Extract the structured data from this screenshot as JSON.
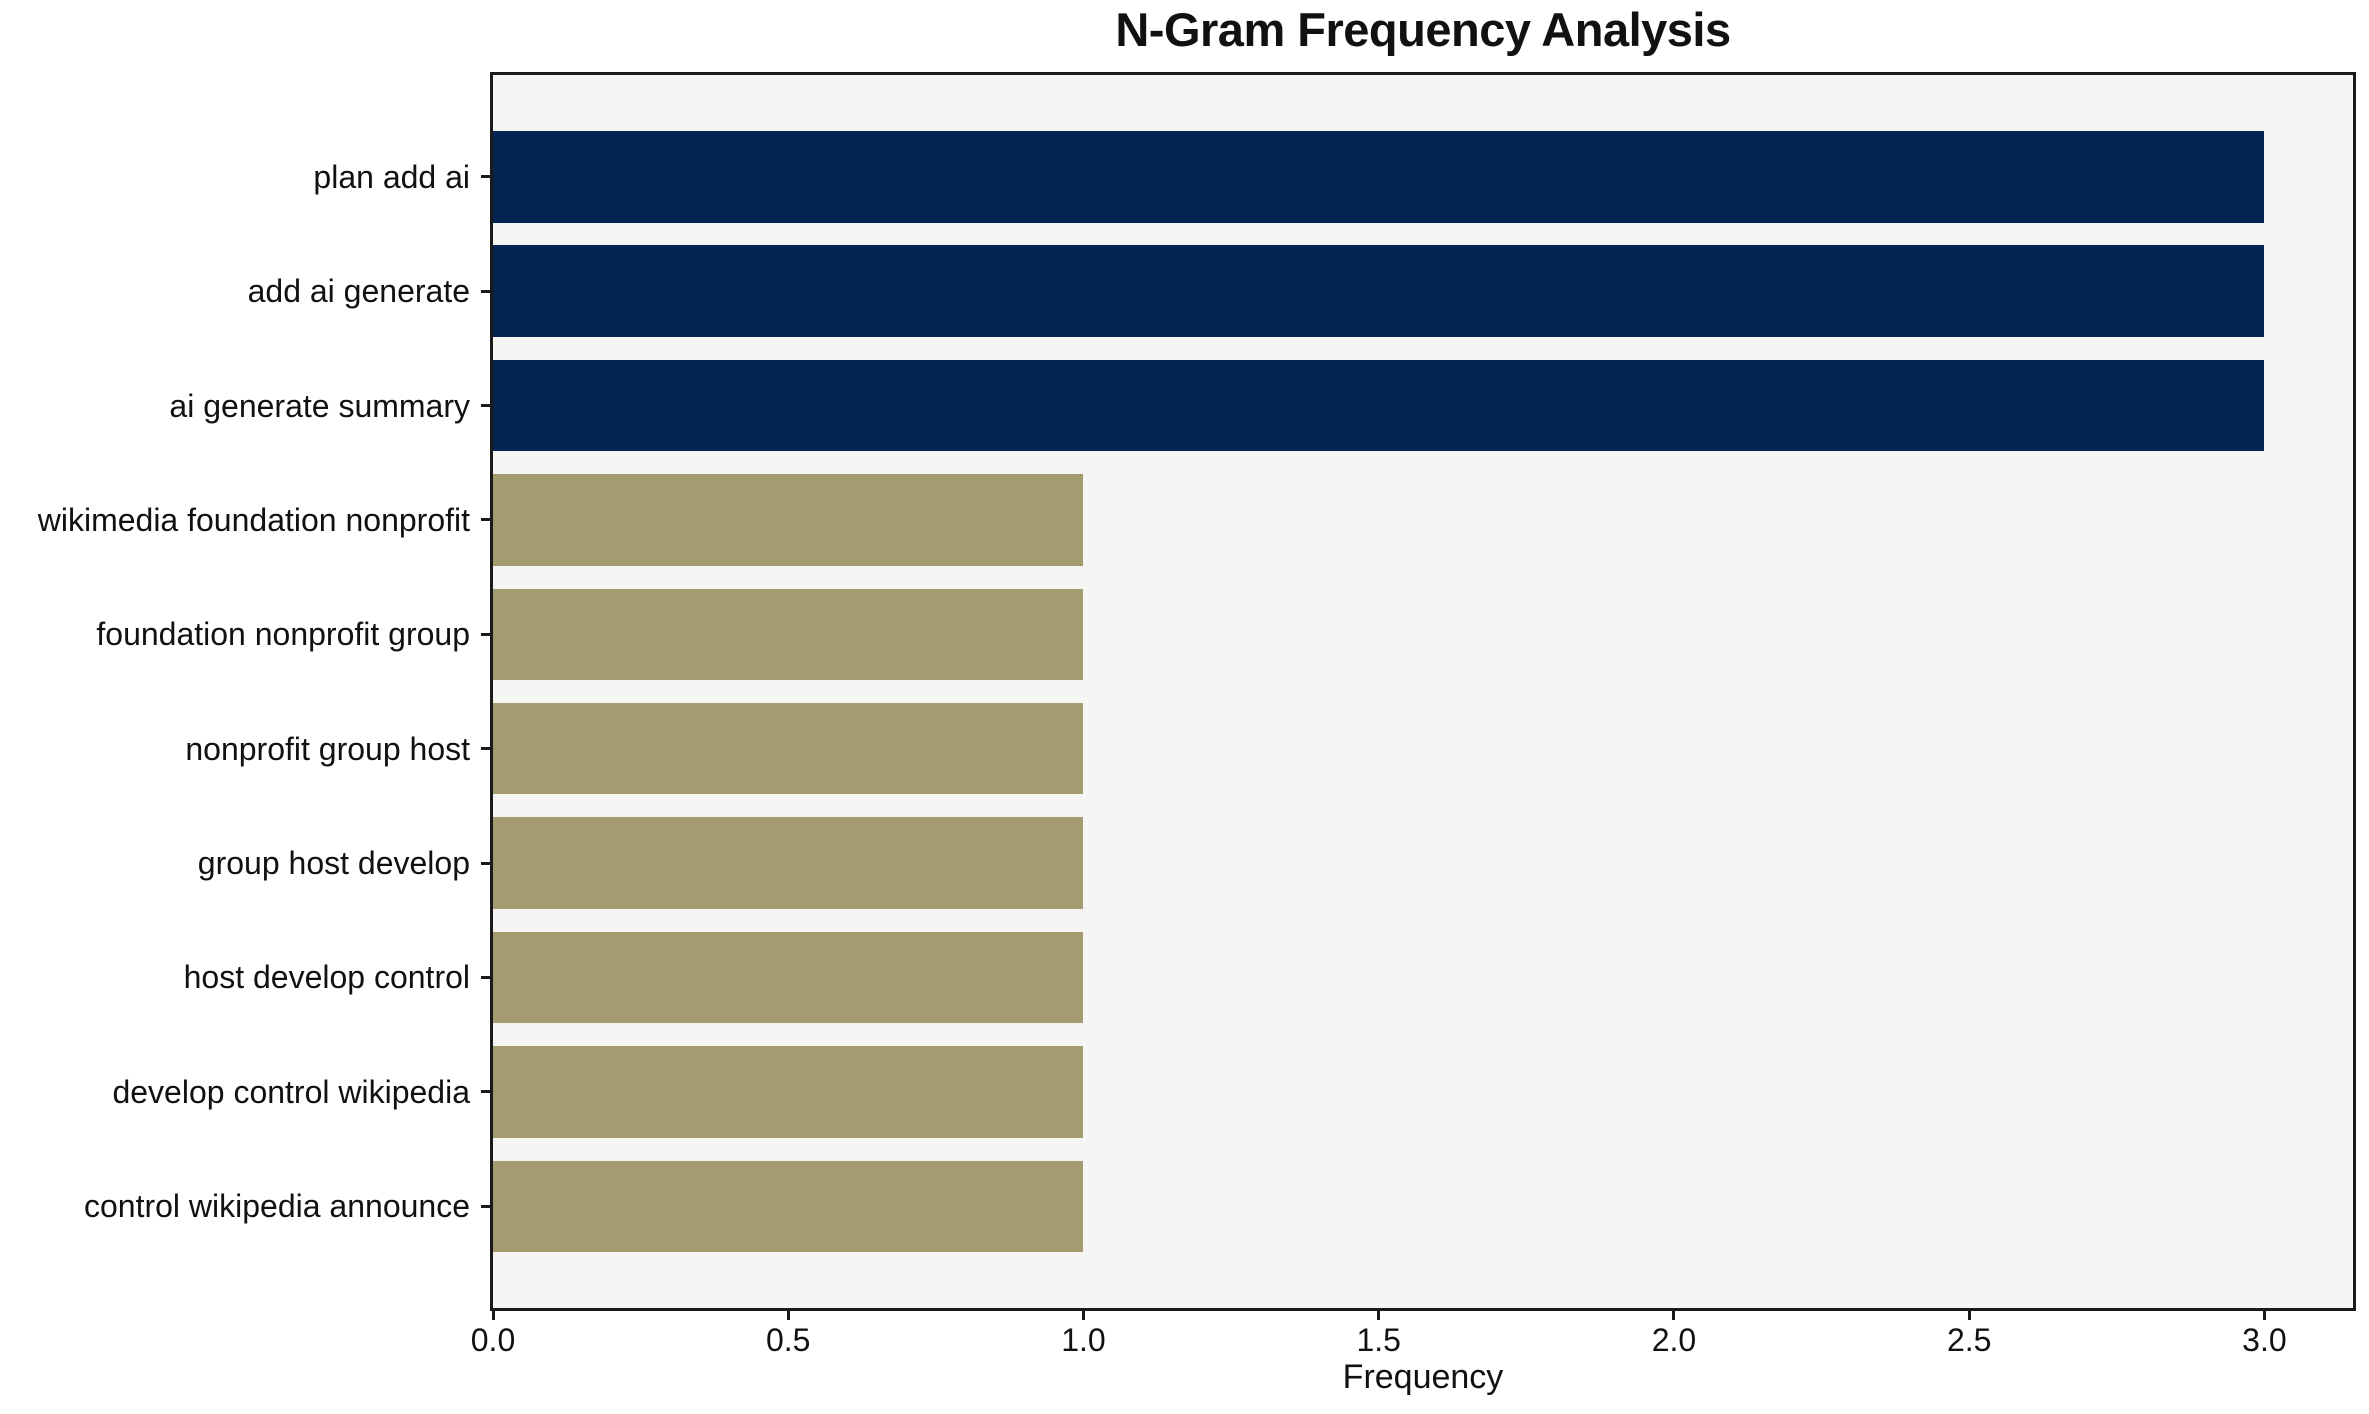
{
  "figure": {
    "background": "#ffffff",
    "plot_background": "#f5f5f4",
    "axis_color": "#1a1a1a"
  },
  "colors": {
    "high_freq_bar": "#032450",
    "low_freq_bar": "#a49b71"
  },
  "chart_data": {
    "type": "bar",
    "orientation": "horizontal",
    "title": "N-Gram Frequency Analysis",
    "xlabel": "Frequency",
    "ylabel": "",
    "categories": [
      "plan add ai",
      "add ai generate",
      "ai generate summary",
      "wikimedia foundation nonprofit",
      "foundation nonprofit group",
      "nonprofit group host",
      "group host develop",
      "host develop control",
      "develop control wikipedia",
      "control wikipedia announce"
    ],
    "values": [
      3,
      3,
      3,
      1,
      1,
      1,
      1,
      1,
      1,
      1
    ],
    "bar_colors": [
      "#032450",
      "#032450",
      "#032450",
      "#a49b71",
      "#a49b71",
      "#a49b71",
      "#a49b71",
      "#a49b71",
      "#a49b71",
      "#a49b71"
    ],
    "xticks": [
      0.0,
      0.5,
      1.0,
      1.5,
      2.0,
      2.5,
      3.0
    ],
    "xlim": [
      0,
      3.15
    ],
    "grid": false,
    "legend": false
  }
}
